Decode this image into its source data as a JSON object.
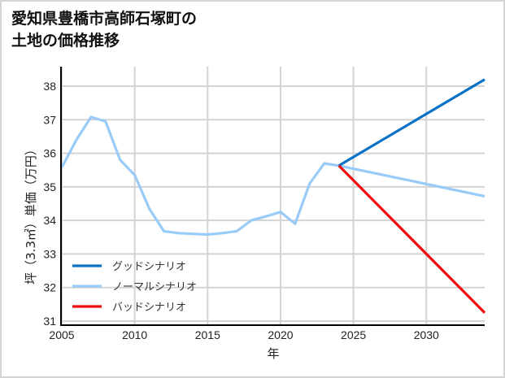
{
  "title": {
    "line1": "愛知県豊橋市高師石塚町の",
    "line2": "土地の価格推移"
  },
  "colors": {
    "good": "#0a72c6",
    "normal": "#99cbf8",
    "bad": "#ee0c0c",
    "grid": "#d3d3d3",
    "axis": "#000000",
    "frame": "#d4d4d4"
  },
  "chart_data": {
    "type": "line",
    "title": "愛知県豊橋市高師石塚町の土地の価格推移",
    "xlabel": "年",
    "ylabel": "坪（3.3㎡）単価（万円）",
    "xlim": [
      2005,
      2034
    ],
    "ylim": [
      30.9,
      38.6
    ],
    "x_ticks": [
      2005,
      2010,
      2015,
      2020,
      2025,
      2030
    ],
    "y_ticks": [
      31,
      32,
      33,
      34,
      35,
      36,
      37,
      38
    ],
    "grid": true,
    "legend_position": "lower left",
    "series": [
      {
        "name": "グッドシナリオ",
        "color": "#0a72c6",
        "x": [
          2024,
          2034
        ],
        "values": [
          35.63,
          38.2
        ]
      },
      {
        "name": "ノーマルシナリオ",
        "color": "#99cbf8",
        "x": [
          2005,
          2006,
          2007,
          2008,
          2009,
          2010,
          2011,
          2012,
          2013,
          2014,
          2015,
          2016,
          2017,
          2018,
          2019,
          2020,
          2021,
          2022,
          2023,
          2024,
          2034
        ],
        "values": [
          35.58,
          36.4,
          37.08,
          36.95,
          35.8,
          35.35,
          34.35,
          33.68,
          33.62,
          33.6,
          33.58,
          33.62,
          33.68,
          34.0,
          34.12,
          34.25,
          33.9,
          35.1,
          35.7,
          35.63,
          34.72
        ]
      },
      {
        "name": "バッドシナリオ",
        "color": "#ee0c0c",
        "x": [
          2024,
          2034
        ],
        "values": [
          35.63,
          31.25
        ]
      }
    ]
  },
  "legend": {
    "items": [
      {
        "label": "グッドシナリオ"
      },
      {
        "label": "ノーマルシナリオ"
      },
      {
        "label": "バッドシナリオ"
      }
    ]
  },
  "axes": {
    "xlabel": "年",
    "ylabel": "坪（3.3㎡）単価（万円）",
    "x_tick_labels": [
      "2005",
      "2010",
      "2015",
      "2020",
      "2025",
      "2030"
    ],
    "y_tick_labels": [
      "31",
      "32",
      "33",
      "34",
      "35",
      "36",
      "37",
      "38"
    ]
  }
}
